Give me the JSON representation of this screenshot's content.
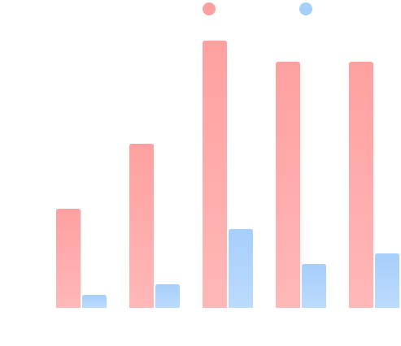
{
  "chart_data": {
    "type": "bar",
    "categories": [
      null,
      null,
      null,
      null,
      null
    ],
    "series": [
      {
        "color": "#ffa0a0",
        "values": [
          122,
          202,
          329,
          303,
          303
        ]
      },
      {
        "color": "#a6cffb",
        "values": [
          16,
          29,
          97,
          54,
          67
        ]
      }
    ],
    "ylim": [
      0,
      350
    ]
  }
}
